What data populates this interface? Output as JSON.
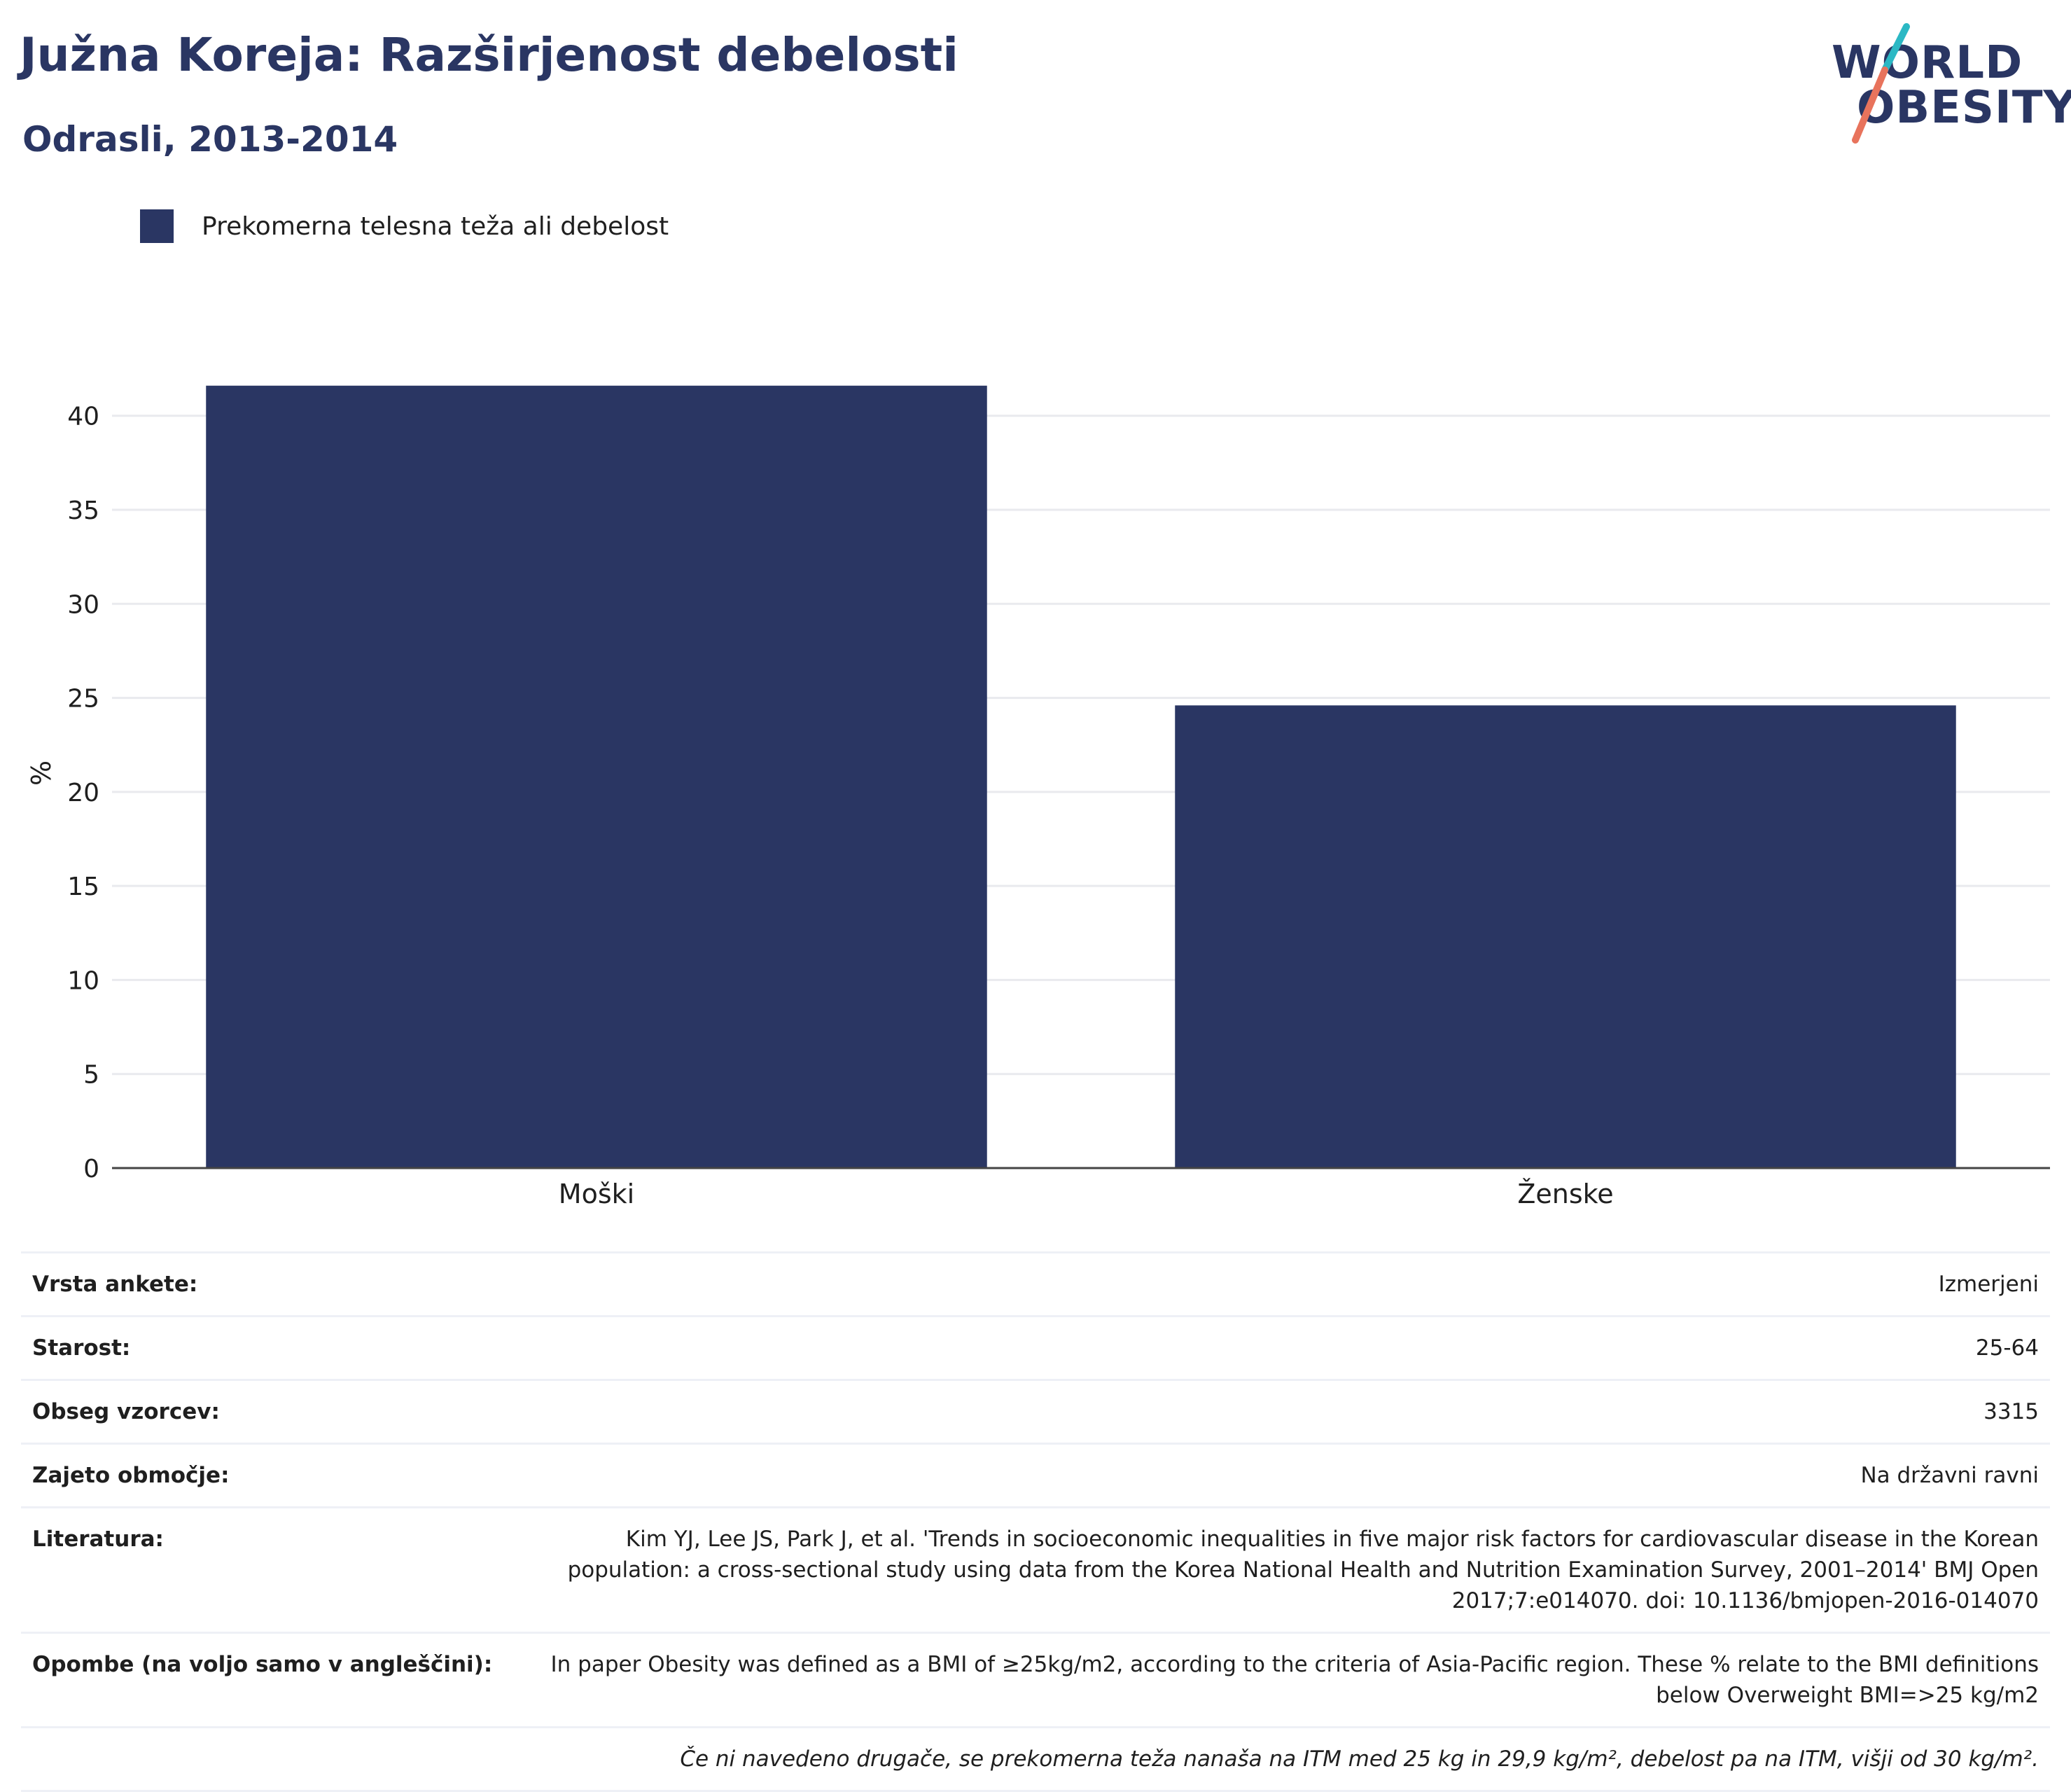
{
  "title": "Južna Koreja: Razširjenost debelosti",
  "subtitle": "Odrasli, 2013-2014",
  "logo": {
    "line1": "WORLD",
    "line2": "OBESITY",
    "colors": {
      "text": "#2a3663",
      "slash_top": "#2bb8c4",
      "slash_bottom": "#e8735c"
    }
  },
  "colors": {
    "bar": "#2a3663",
    "grid": "#e9eaee",
    "axis": "#444444",
    "title": "#2a3663"
  },
  "chart_data": {
    "type": "bar",
    "categories": [
      "Moški",
      "Ženske"
    ],
    "series": [
      {
        "name": "Prekomerna telesna teža ali debelost",
        "values": [
          41.6,
          24.6
        ]
      }
    ],
    "ylabel": "%",
    "xlabel": "",
    "ylim": [
      0,
      42
    ],
    "yticks": [
      0,
      5,
      10,
      15,
      20,
      25,
      30,
      35,
      40
    ],
    "grid": true,
    "legend": "top-left"
  },
  "info": [
    {
      "label": "Vrsta ankete:",
      "value": "Izmerjeni"
    },
    {
      "label": "Starost:",
      "value": "25-64"
    },
    {
      "label": "Obseg vzorcev:",
      "value": "3315"
    },
    {
      "label": "Zajeto območje:",
      "value": "Na državni ravni"
    },
    {
      "label": "Literatura:",
      "value": "Kim YJ, Lee JS, Park J, et al. 'Trends in socioeconomic inequalities in five major risk factors for cardiovascular disease in the Korean population: a cross-sectional study using data from the Korea National Health and Nutrition Examination Survey, 2001–2014' BMJ Open 2017;7:e014070. doi: 10.1136/bmjopen-2016-014070"
    },
    {
      "label": "Opombe (na voljo samo v angleščini):",
      "value": "In paper Obesity was defined as a BMI of ≥25kg/m2, according to the criteria of Asia-Pacific region. These % relate to the BMI definitions below Overweight BMI=>25 kg/m2"
    }
  ],
  "footnote": "Če ni navedeno drugače, se prekomerna teža nanaša na ITM med 25 kg in 29,9 kg/m², debelost pa na ITM, višji od 30 kg/m²."
}
